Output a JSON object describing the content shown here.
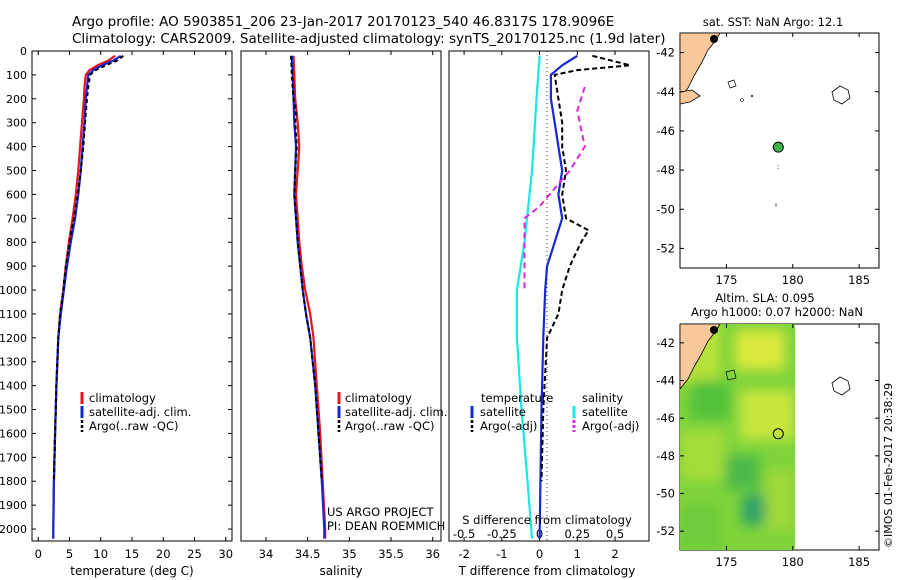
{
  "header": {
    "line1": "Argo profile: AO 5903851_206 23-Jan-2017 20170123_540 46.8317S 178.9096E",
    "line2": "Climatology: CARS2009. Satellite-adjusted climatology: synTS_20170125.nc (1.9d later)"
  },
  "credit": {
    "project": "US ARGO PROJECT",
    "pi": "PI: DEAN ROEMMICH"
  },
  "stamp": "©IMOS 01-Feb-2017 20:38:29",
  "colors": {
    "climatology": "#e8141e",
    "satellite": "#1428d2",
    "argo": "#000000",
    "salinity_sat": "#19e6e6",
    "salinity_argo": "#dc28dc",
    "land": "#f8c89a"
  },
  "chart_data": [
    {
      "type": "line",
      "xlabel": "temperature (deg C)",
      "xlim": [
        -1,
        31
      ],
      "xticks": [
        0,
        5,
        10,
        15,
        20,
        25,
        30
      ],
      "ylim": [
        2050,
        0
      ],
      "yticks": [
        0,
        100,
        200,
        300,
        400,
        500,
        600,
        700,
        800,
        900,
        1000,
        1100,
        1200,
        1300,
        1400,
        1500,
        1600,
        1700,
        1800,
        1900,
        2000
      ],
      "legend": [
        "climatology",
        "satellite-adj. clim.",
        "Argo(..raw -QC)"
      ],
      "series": [
        {
          "name": "climatology",
          "color": "#e8141e",
          "dash": "",
          "points": [
            [
              12.3,
              20
            ],
            [
              11.2,
              40
            ],
            [
              9.5,
              60
            ],
            [
              8.2,
              80
            ],
            [
              7.6,
              100
            ],
            [
              7.4,
              150
            ],
            [
              7.3,
              200
            ],
            [
              7.0,
              300
            ],
            [
              6.7,
              400
            ],
            [
              6.4,
              500
            ],
            [
              6.0,
              600
            ],
            [
              5.5,
              700
            ],
            [
              4.9,
              800
            ],
            [
              4.4,
              900
            ],
            [
              4.0,
              1000
            ],
            [
              3.5,
              1100
            ],
            [
              3.2,
              1200
            ],
            [
              2.9,
              1400
            ],
            [
              2.7,
              1600
            ],
            [
              2.5,
              1800
            ],
            [
              2.4,
              2000
            ],
            [
              2.4,
              2040
            ]
          ]
        },
        {
          "name": "satellite-adj. clim.",
          "color": "#1428d2",
          "dash": "",
          "points": [
            [
              13.2,
              20
            ],
            [
              12.0,
              40
            ],
            [
              10.2,
              60
            ],
            [
              8.8,
              80
            ],
            [
              8.0,
              100
            ],
            [
              7.8,
              150
            ],
            [
              7.6,
              200
            ],
            [
              7.4,
              300
            ],
            [
              7.1,
              400
            ],
            [
              6.8,
              500
            ],
            [
              6.4,
              600
            ],
            [
              5.9,
              700
            ],
            [
              5.2,
              800
            ],
            [
              4.6,
              900
            ],
            [
              4.1,
              1000
            ],
            [
              3.6,
              1100
            ],
            [
              3.2,
              1200
            ],
            [
              2.9,
              1400
            ],
            [
              2.7,
              1600
            ],
            [
              2.5,
              1800
            ],
            [
              2.4,
              2000
            ],
            [
              2.4,
              2040
            ]
          ]
        },
        {
          "name": "Argo(..raw -QC)",
          "color": "#000000",
          "dash": "4,3",
          "points": [
            [
              13.6,
              20
            ],
            [
              12.6,
              40
            ],
            [
              10.8,
              60
            ],
            [
              9.2,
              80
            ],
            [
              8.3,
              100
            ],
            [
              8.0,
              150
            ],
            [
              7.8,
              200
            ],
            [
              7.5,
              300
            ],
            [
              7.2,
              400
            ],
            [
              6.8,
              500
            ],
            [
              6.3,
              600
            ],
            [
              5.7,
              700
            ],
            [
              5.0,
              800
            ],
            [
              4.4,
              900
            ],
            [
              4.0,
              1000
            ],
            [
              3.5,
              1100
            ],
            [
              3.2,
              1200
            ],
            [
              2.9,
              1400
            ],
            [
              2.7,
              1600
            ],
            [
              2.5,
              1800
            ]
          ]
        }
      ]
    },
    {
      "type": "line",
      "xlabel": "salinity",
      "xlim": [
        33.7,
        36.1
      ],
      "xticks": [
        34,
        34.5,
        35,
        35.5,
        36
      ],
      "ylim": [
        2050,
        0
      ],
      "legend": [
        "climatology",
        "satellite-adj. clim.",
        "Argo(..raw -QC)"
      ],
      "series": [
        {
          "name": "climatology",
          "color": "#e8141e",
          "dash": "",
          "points": [
            [
              34.33,
              20
            ],
            [
              34.34,
              100
            ],
            [
              34.35,
              200
            ],
            [
              34.38,
              300
            ],
            [
              34.4,
              400
            ],
            [
              34.38,
              500
            ],
            [
              34.36,
              600
            ],
            [
              34.38,
              700
            ],
            [
              34.4,
              800
            ],
            [
              34.43,
              900
            ],
            [
              34.47,
              1000
            ],
            [
              34.53,
              1100
            ],
            [
              34.57,
              1200
            ],
            [
              34.61,
              1400
            ],
            [
              34.65,
              1600
            ],
            [
              34.68,
              1800
            ],
            [
              34.71,
              2000
            ],
            [
              34.71,
              2040
            ]
          ]
        },
        {
          "name": "satellite-adj. clim.",
          "color": "#1428d2",
          "dash": "",
          "points": [
            [
              34.31,
              20
            ],
            [
              34.32,
              100
            ],
            [
              34.33,
              200
            ],
            [
              34.34,
              300
            ],
            [
              34.36,
              400
            ],
            [
              34.35,
              500
            ],
            [
              34.34,
              600
            ],
            [
              34.36,
              700
            ],
            [
              34.38,
              800
            ],
            [
              34.41,
              900
            ],
            [
              34.44,
              1000
            ],
            [
              34.48,
              1100
            ],
            [
              34.53,
              1200
            ],
            [
              34.59,
              1400
            ],
            [
              34.63,
              1600
            ],
            [
              34.67,
              1800
            ],
            [
              34.7,
              2000
            ],
            [
              34.7,
              2040
            ]
          ]
        },
        {
          "name": "Argo(..raw -QC)",
          "color": "#000000",
          "dash": "4,3",
          "points": [
            [
              34.3,
              20
            ],
            [
              34.31,
              100
            ],
            [
              34.33,
              200
            ],
            [
              34.36,
              250
            ],
            [
              34.35,
              300
            ],
            [
              34.37,
              400
            ],
            [
              34.35,
              500
            ],
            [
              34.34,
              600
            ],
            [
              34.36,
              700
            ],
            [
              34.38,
              800
            ],
            [
              34.41,
              900
            ],
            [
              34.44,
              1000
            ],
            [
              34.48,
              1100
            ],
            [
              34.53,
              1200
            ],
            [
              34.59,
              1400
            ],
            [
              34.63,
              1600
            ],
            [
              34.67,
              1800
            ]
          ]
        }
      ]
    },
    {
      "type": "line",
      "xlabel": "T difference from climatology",
      "xlabel_top": "S difference from climatology",
      "xlim": [
        -2.4,
        2.9
      ],
      "xticks": [
        -2,
        -1,
        0,
        1,
        2
      ],
      "xticks_top": [
        -0.5,
        -0.25,
        0,
        0.25,
        0.5
      ],
      "xtick_top_labels": [
        "-0.5",
        "-0.25",
        "0",
        "0.25",
        "0.5"
      ],
      "ylim": [
        2050,
        0
      ],
      "legend_temperature": {
        "heading": "temperature",
        "items": [
          "satellite",
          "Argo(-adj)"
        ]
      },
      "legend_salinity": {
        "heading": "salinity",
        "items": [
          "satellite",
          "Argo(-adj)"
        ]
      },
      "series": [
        {
          "name": "satellite",
          "color": "#1428d2",
          "dash": "",
          "points": [
            [
              1.0,
              20
            ],
            [
              0.6,
              60
            ],
            [
              0.3,
              100
            ],
            [
              0.3,
              200
            ],
            [
              0.4,
              300
            ],
            [
              0.5,
              400
            ],
            [
              0.6,
              500
            ],
            [
              0.5,
              600
            ],
            [
              0.6,
              700
            ],
            [
              0.4,
              800
            ],
            [
              0.2,
              900
            ],
            [
              0.15,
              1000
            ],
            [
              0.1,
              1200
            ],
            [
              0.05,
              1500
            ],
            [
              0.0,
              2040
            ]
          ]
        },
        {
          "name": "Argo(-adj)",
          "color": "#000000",
          "dash": "5,3",
          "points": [
            [
              1.4,
              20
            ],
            [
              2.4,
              60
            ],
            [
              1.0,
              80
            ],
            [
              0.4,
              100
            ],
            [
              0.5,
              200
            ],
            [
              0.6,
              300
            ],
            [
              0.6,
              400
            ],
            [
              0.7,
              500
            ],
            [
              0.6,
              600
            ],
            [
              0.7,
              700
            ],
            [
              1.3,
              750
            ],
            [
              1.1,
              800
            ],
            [
              0.8,
              900
            ],
            [
              0.6,
              1000
            ],
            [
              0.5,
              1100
            ],
            [
              0.2,
              1200
            ],
            [
              0.1,
              1500
            ],
            [
              0.05,
              1800
            ]
          ]
        },
        {
          "name": "salinity satellite",
          "color": "#19e6e6",
          "dash": "",
          "points": [
            [
              0.0,
              20
            ],
            [
              -0.02,
              200
            ],
            [
              -0.05,
              500
            ],
            [
              -0.1,
              800
            ],
            [
              -0.15,
              1000
            ],
            [
              -0.15,
              1200
            ],
            [
              -0.12,
              1500
            ],
            [
              -0.08,
              1800
            ],
            [
              -0.05,
              2040
            ]
          ]
        },
        {
          "name": "salinity Argo(-adj)",
          "color": "#dc28dc",
          "dash": "6,4",
          "points": [
            [
              0.3,
              150
            ],
            [
              0.25,
              250
            ],
            [
              0.3,
              400
            ],
            [
              0.2,
              500
            ],
            [
              0.0,
              650
            ],
            [
              -0.1,
              700
            ],
            [
              -0.1,
              1000
            ]
          ]
        }
      ]
    },
    {
      "type": "scatter",
      "title": "sat. SST: NaN  Argo: 12.1",
      "xlim": [
        171.5,
        186.5
      ],
      "ylim": [
        -53,
        -41
      ],
      "xticks": [
        175,
        180,
        185
      ],
      "yticks": [
        -42,
        -44,
        -46,
        -48,
        -50,
        -52
      ],
      "float_lon": 178.91,
      "float_lat": -46.83
    },
    {
      "type": "heatmap",
      "title1": "Altim. SLA: 0.095",
      "title2": "Argo h1000: 0.07 h2000: NaN",
      "xlim": [
        171.5,
        186.5
      ],
      "ylim": [
        -53,
        -41
      ],
      "xticks": [
        175,
        180,
        185
      ],
      "yticks": [
        -42,
        -44,
        -46,
        -48,
        -50,
        -52
      ],
      "float_lon": 178.91,
      "float_lat": -46.83
    }
  ]
}
